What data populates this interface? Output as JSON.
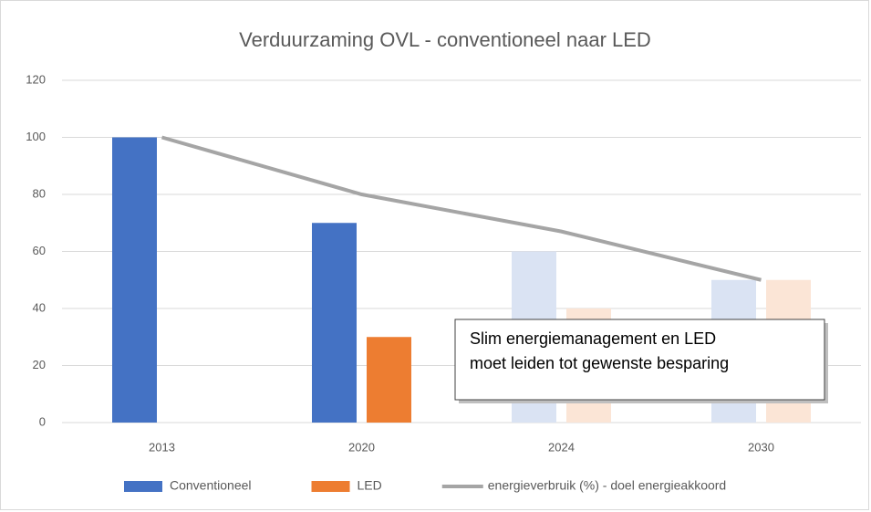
{
  "chart_data": {
    "type": "bar",
    "title": "Verduurzaming OVL - conventioneel naar LED",
    "categories": [
      "2013",
      "2020",
      "2024",
      "2030"
    ],
    "series": [
      {
        "name": "Conventioneel",
        "color": "#4472c4",
        "colors": [
          "#4472c4",
          "#4472c4",
          "#dae3f3",
          "#dae3f3"
        ],
        "values": [
          100,
          70,
          60,
          50
        ]
      },
      {
        "name": "LED",
        "color": "#ed7d31",
        "colors": [
          "#ed7d31",
          "#ed7d31",
          "#fbe5d6",
          "#fbe5d6"
        ],
        "values": [
          null,
          30,
          40,
          50
        ]
      },
      {
        "name": "energieverbruik (%) - doel energieakkoord",
        "type": "line",
        "color": "#a5a5a5",
        "values": [
          100,
          80,
          67,
          50
        ]
      }
    ],
    "annotation": [
      "Slim  energiemanagement en LED",
      "moet leiden tot gewenste besparing"
    ],
    "ylim": [
      0,
      120
    ],
    "yticks": [
      0,
      20,
      40,
      60,
      80,
      100,
      120
    ],
    "grid": true,
    "legend": "bottom"
  }
}
